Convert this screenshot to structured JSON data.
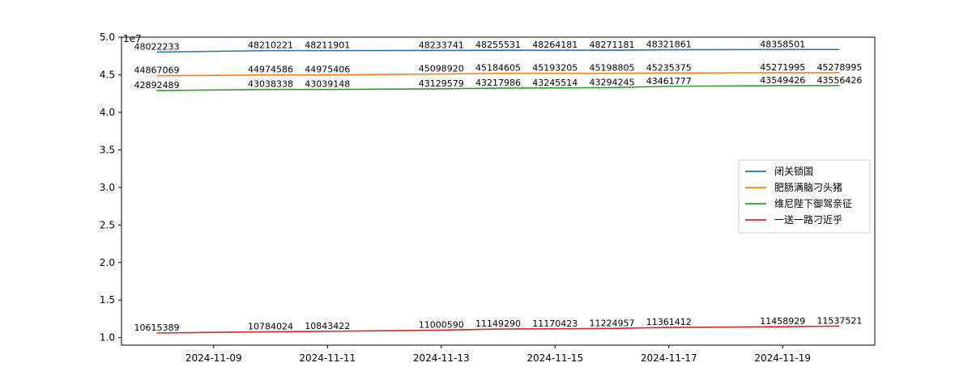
{
  "chart_data": {
    "type": "line",
    "title": "",
    "xlabel": "",
    "ylabel": "",
    "y_offset_label": "1e7",
    "x_dates": [
      "2024-11-08",
      "2024-11-10",
      "2024-11-11",
      "2024-11-13",
      "2024-11-14",
      "2024-11-15",
      "2024-11-16",
      "2024-11-17",
      "2024-11-19",
      "2024-11-20"
    ],
    "x_ticks": [
      "2024-11-09",
      "2024-11-11",
      "2024-11-13",
      "2024-11-15",
      "2024-11-17",
      "2024-11-19"
    ],
    "y_ticks": [
      "1.0",
      "1.5",
      "2.0",
      "2.5",
      "3.0",
      "3.5",
      "4.0",
      "4.5",
      "5.0"
    ],
    "ylim": [
      9000000,
      50000000
    ],
    "grid": false,
    "legend_position": "center-right",
    "series": [
      {
        "name": "闭关锁国",
        "color": "#1f77b4",
        "values": [
          48022233,
          48210221,
          48211901,
          48233741,
          48255531,
          48264181,
          48271181,
          48321861,
          48358501,
          48358501
        ],
        "labels": [
          "48022233",
          "48210221",
          "48211901",
          "48233741",
          "48255531",
          "48264181",
          "48271181",
          "48321861",
          "48358501",
          ""
        ]
      },
      {
        "name": "肥肠满脑刁头猪",
        "color": "#ff7f0e",
        "values": [
          44867069,
          44974586,
          44975406,
          45098920,
          45184605,
          45193205,
          45198805,
          45235375,
          45271995,
          45278995
        ],
        "labels": [
          "44867069",
          "44974586",
          "44975406",
          "45098920",
          "45184605",
          "45193205",
          "45198805",
          "45235375",
          "45271995",
          "45278995"
        ]
      },
      {
        "name": "维尼陛下御驾亲征",
        "color": "#2ca02c",
        "values": [
          42892489,
          43038338,
          43039148,
          43129579,
          43217986,
          43245514,
          43294245,
          43461777,
          43549426,
          43556426
        ],
        "labels": [
          "42892489",
          "43038338",
          "43039148",
          "43129579",
          "43217986",
          "43245514",
          "43294245",
          "43461777",
          "43549426",
          "43556426"
        ]
      },
      {
        "name": "一送一路刁近乎",
        "color": "#d62728",
        "values": [
          10615389,
          10784024,
          10843422,
          11000590,
          11149290,
          11170423,
          11224957,
          11361412,
          11458929,
          11537521
        ],
        "labels": [
          "10615389",
          "10784024",
          "10843422",
          "11000590",
          "11149290",
          "11170423",
          "11224957",
          "11361412",
          "11458929",
          "11537521"
        ]
      }
    ]
  }
}
